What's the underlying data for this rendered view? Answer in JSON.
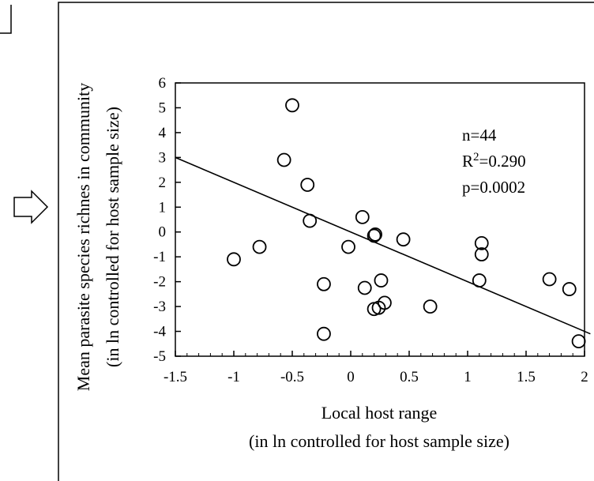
{
  "chart_data": {
    "type": "scatter",
    "title": "",
    "xlabel": "Local host range",
    "xlabel_sub": "(in ln controlled for host sample size)",
    "ylabel": "Mean parasite species richnes in community",
    "ylabel_sub": "(in ln controlled for host sample size)",
    "xlim": [
      -1.5,
      2
    ],
    "ylim": [
      -5,
      6
    ],
    "xticks": [
      -1.5,
      -1,
      -0.5,
      0,
      0.5,
      1,
      1.5,
      2
    ],
    "xtick_labels": [
      "-1.5",
      "-1",
      "-0.5",
      "0",
      "0.5",
      "1",
      "1.5",
      "2"
    ],
    "yticks": [
      -5,
      -4,
      -3,
      -2,
      -1,
      0,
      1,
      2,
      3,
      4,
      5,
      6
    ],
    "ytick_labels": [
      "-5",
      "-4",
      "-3",
      "-2",
      "-1",
      "0",
      "1",
      "2",
      "3",
      "4",
      "5",
      "6"
    ],
    "grid": false,
    "marker": "open-circle",
    "points": [
      {
        "x": -1.0,
        "y": -1.1
      },
      {
        "x": -0.78,
        "y": -0.6
      },
      {
        "x": -0.5,
        "y": 5.1
      },
      {
        "x": -0.57,
        "y": 2.9
      },
      {
        "x": -0.37,
        "y": 1.9
      },
      {
        "x": -0.35,
        "y": 0.45
      },
      {
        "x": -0.23,
        "y": -2.1
      },
      {
        "x": -0.23,
        "y": -4.1
      },
      {
        "x": -0.02,
        "y": -0.6
      },
      {
        "x": 0.1,
        "y": 0.6
      },
      {
        "x": 0.12,
        "y": -2.25
      },
      {
        "x": 0.2,
        "y": -0.15
      },
      {
        "x": 0.21,
        "y": -0.1
      },
      {
        "x": 0.2,
        "y": -3.1
      },
      {
        "x": 0.24,
        "y": -3.05
      },
      {
        "x": 0.26,
        "y": -1.95
      },
      {
        "x": 0.29,
        "y": -2.85
      },
      {
        "x": 0.45,
        "y": -0.3
      },
      {
        "x": 0.68,
        "y": -3.0
      },
      {
        "x": 1.12,
        "y": -0.45
      },
      {
        "x": 1.12,
        "y": -0.9
      },
      {
        "x": 1.1,
        "y": -1.95
      },
      {
        "x": 1.7,
        "y": -1.9
      },
      {
        "x": 1.87,
        "y": -2.3
      },
      {
        "x": 1.95,
        "y": -4.4
      }
    ],
    "regression_line": {
      "x1": -1.5,
      "y1": 3.0,
      "x2": 2.05,
      "y2": -4.1
    },
    "stats": [
      "n=44",
      "R²=0.290",
      "p=0.0002"
    ]
  }
}
